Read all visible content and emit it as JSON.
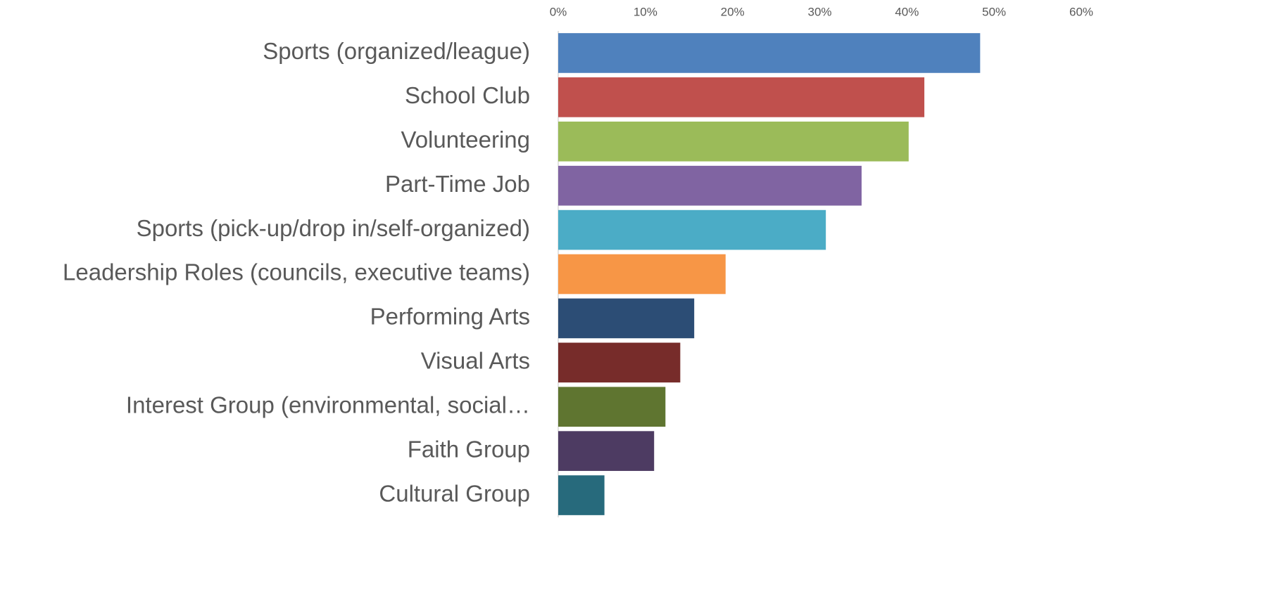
{
  "chart_data": {
    "type": "bar",
    "orientation": "horizontal",
    "categories": [
      "Sports (organized/league)",
      "School Club",
      "Volunteering",
      "Part-Time Job",
      "Sports (pick-up/drop in/self-organized)",
      "Leadership Roles (councils, executive teams)",
      "Performing Arts",
      "Visual Arts",
      "Interest Group (environmental, social…",
      "Faith Group",
      "Cultural Group"
    ],
    "values": [
      48.4,
      42.0,
      40.2,
      34.8,
      30.7,
      19.2,
      15.6,
      14.0,
      12.3,
      11.0,
      5.3
    ],
    "colors": [
      "#4f81bd",
      "#c0504d",
      "#9bbb59",
      "#8064a2",
      "#4bacc6",
      "#f79646",
      "#2c4d75",
      "#772c2a",
      "#5f7530",
      "#4d3b62",
      "#276a7c"
    ],
    "xlim": [
      0,
      60
    ],
    "xticks": [
      {
        "value": 0,
        "label": "0%"
      },
      {
        "value": 10,
        "label": "10%"
      },
      {
        "value": 20,
        "label": "20%"
      },
      {
        "value": 30,
        "label": "30%"
      },
      {
        "value": 40,
        "label": "40%"
      },
      {
        "value": 50,
        "label": "50%"
      },
      {
        "value": 60,
        "label": "60%"
      }
    ],
    "grid": false
  }
}
